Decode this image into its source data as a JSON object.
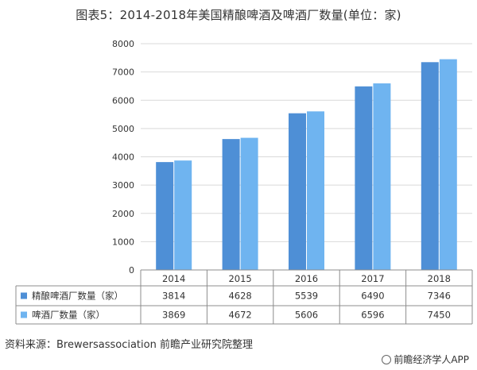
{
  "chart_data": {
    "type": "bar",
    "title": "图表5：2014-2018年美国精酿啤酒及啤酒厂数量(单位：家)",
    "categories": [
      "2014",
      "2015",
      "2016",
      "2017",
      "2018"
    ],
    "series": [
      {
        "name": "精酿啤酒厂数量（家）",
        "values": [
          3814,
          4628,
          5539,
          6490,
          7346
        ],
        "color": "#4e8fd6"
      },
      {
        "name": "啤酒厂数量（家）",
        "values": [
          3869,
          4672,
          5606,
          6596,
          7450
        ],
        "color": "#6fb4f0"
      }
    ],
    "ylim": [
      0,
      8000
    ],
    "yticks": [
      0,
      1000,
      2000,
      3000,
      4000,
      5000,
      6000,
      7000,
      8000
    ],
    "grid": true,
    "legend": "data-table"
  },
  "source": "资料来源：Brewersassociation 前瞻产业研究院整理",
  "brand": "前瞻经济学人APP"
}
